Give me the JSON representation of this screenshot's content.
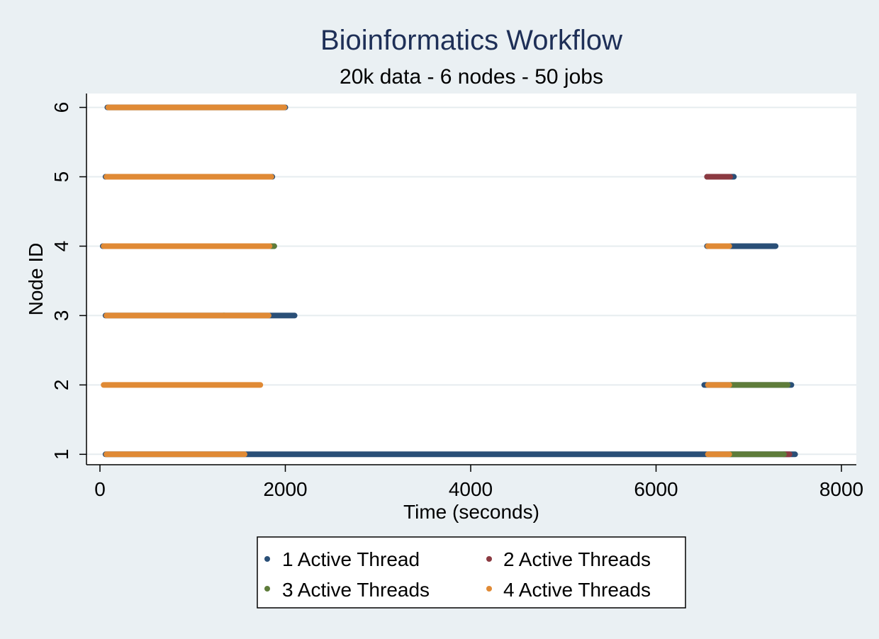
{
  "chart_data": {
    "type": "scatter",
    "title": "Bioinformatics Workflow",
    "subtitle": "20k data - 6 nodes - 50 jobs",
    "xlabel": "Time (seconds)",
    "ylabel": "Node ID",
    "xlim": [
      0,
      8000
    ],
    "ylim": [
      0.85,
      6.2
    ],
    "x_ticks": [
      0,
      2000,
      4000,
      6000,
      8000
    ],
    "y_ticks": [
      1,
      2,
      3,
      4,
      5,
      6
    ],
    "grid": "horizontal",
    "legend_position": "bottom",
    "series": [
      {
        "name": "1 Active Thread",
        "color": "#2a4f77",
        "segments": [
          {
            "node": 6,
            "start": 80,
            "end": 2000
          },
          {
            "node": 5,
            "start": 60,
            "end": 1860
          },
          {
            "node": 5,
            "start": 6550,
            "end": 6840
          },
          {
            "node": 4,
            "start": 30,
            "end": 1880
          },
          {
            "node": 4,
            "start": 6550,
            "end": 7290
          },
          {
            "node": 3,
            "start": 60,
            "end": 2100
          },
          {
            "node": 2,
            "start": 6520,
            "end": 7460
          },
          {
            "node": 1,
            "start": 60,
            "end": 7500
          }
        ]
      },
      {
        "name": "2 Active Threads",
        "color": "#8b3a41",
        "segments": [
          {
            "node": 5,
            "start": 6550,
            "end": 6800
          },
          {
            "node": 1,
            "start": 7380,
            "end": 7440
          }
        ]
      },
      {
        "name": "3 Active Threads",
        "color": "#5e7c3a",
        "segments": [
          {
            "node": 4,
            "start": 1800,
            "end": 1880
          },
          {
            "node": 3,
            "start": 1330,
            "end": 1345
          },
          {
            "node": 2,
            "start": 6800,
            "end": 7420
          },
          {
            "node": 1,
            "start": 6800,
            "end": 7380
          }
        ]
      },
      {
        "name": "4 Active Threads",
        "color": "#e08a35",
        "segments": [
          {
            "node": 6,
            "start": 90,
            "end": 1990
          },
          {
            "node": 5,
            "start": 70,
            "end": 1850
          },
          {
            "node": 4,
            "start": 40,
            "end": 1830
          },
          {
            "node": 4,
            "start": 6560,
            "end": 6790
          },
          {
            "node": 3,
            "start": 70,
            "end": 1820
          },
          {
            "node": 2,
            "start": 40,
            "end": 1730
          },
          {
            "node": 2,
            "start": 6560,
            "end": 6790
          },
          {
            "node": 1,
            "start": 70,
            "end": 1560
          },
          {
            "node": 1,
            "start": 6560,
            "end": 6790
          }
        ]
      }
    ]
  }
}
